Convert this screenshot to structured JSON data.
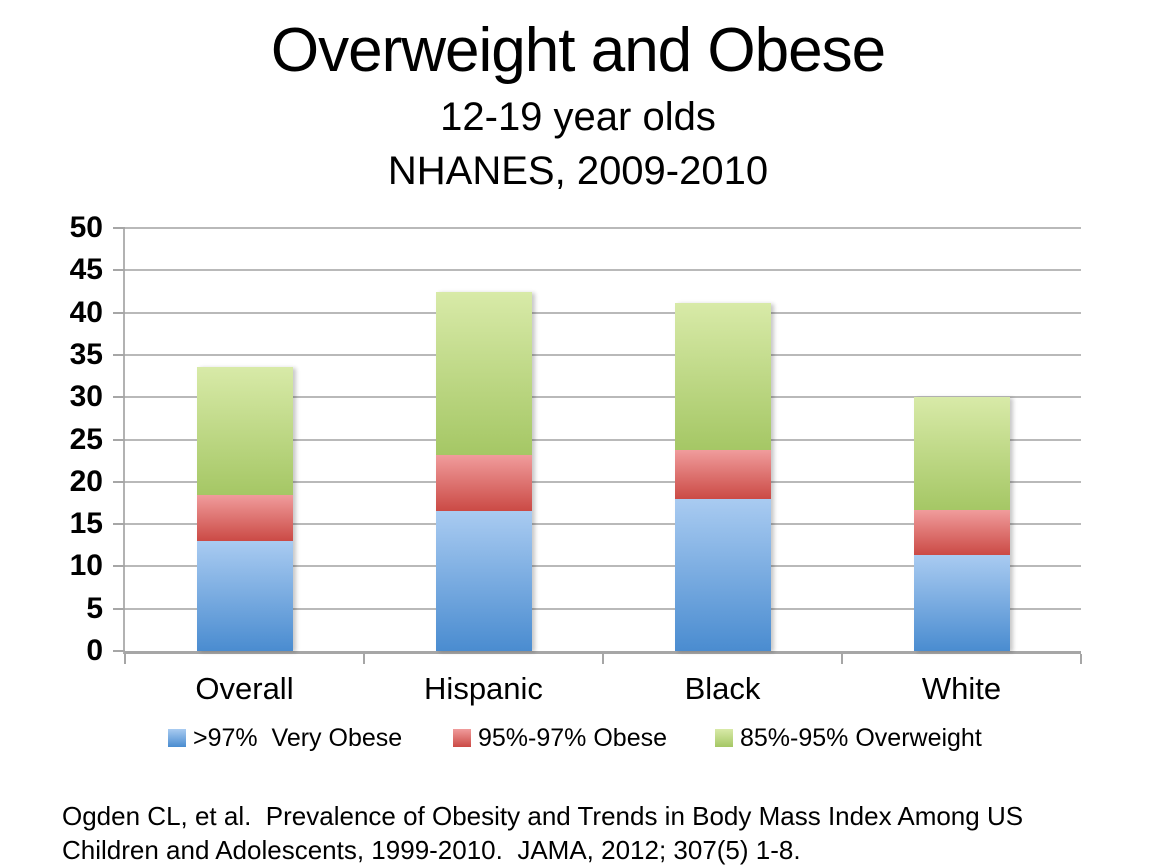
{
  "slide": {
    "title": "Overweight and Obese",
    "subtitle_age": "12-19 year olds",
    "subtitle_survey": "NHANES, 2009-2010",
    "citation": {
      "line1": "Ogden CL, et al.  Prevalence of Obesity and Trends in Body Mass Index Among US",
      "line2": "Children and Adolescents, 1999-2010.  JAMA, 2012; 307(5) 1-8."
    }
  },
  "chart_data": {
    "type": "bar",
    "stacked": true,
    "title": "Overweight and Obese",
    "subtitle": "12-19 year olds, NHANES, 2009-2010",
    "categories": [
      "Overall",
      "Hispanic",
      "Black",
      "White"
    ],
    "series": [
      {
        "name": ">97%  Very Obese",
        "color_top": "#a9cbf1",
        "color_bottom": "#4a8cd0",
        "values": [
          13.0,
          16.5,
          18.0,
          11.3
        ]
      },
      {
        "name": "95%-97% Obese",
        "color_top": "#f09c9c",
        "color_bottom": "#cb4a45",
        "values": [
          5.4,
          6.7,
          5.8,
          5.4
        ]
      },
      {
        "name": "85%-95% Overweight",
        "color_top": "#d8eaa8",
        "color_bottom": "#a5c765",
        "values": [
          15.2,
          19.2,
          17.3,
          13.3
        ]
      }
    ],
    "bar_totals": [
      33.6,
      42.4,
      41.1,
      30.0
    ],
    "xlabel": "",
    "ylabel": "",
    "ylim": [
      0,
      50
    ],
    "yticks": [
      0,
      5,
      10,
      15,
      20,
      25,
      30,
      35,
      40,
      45,
      50
    ],
    "grid": true,
    "legend_position": "bottom",
    "gridline_color": "#b9b9b9",
    "text_color": "#000000"
  }
}
